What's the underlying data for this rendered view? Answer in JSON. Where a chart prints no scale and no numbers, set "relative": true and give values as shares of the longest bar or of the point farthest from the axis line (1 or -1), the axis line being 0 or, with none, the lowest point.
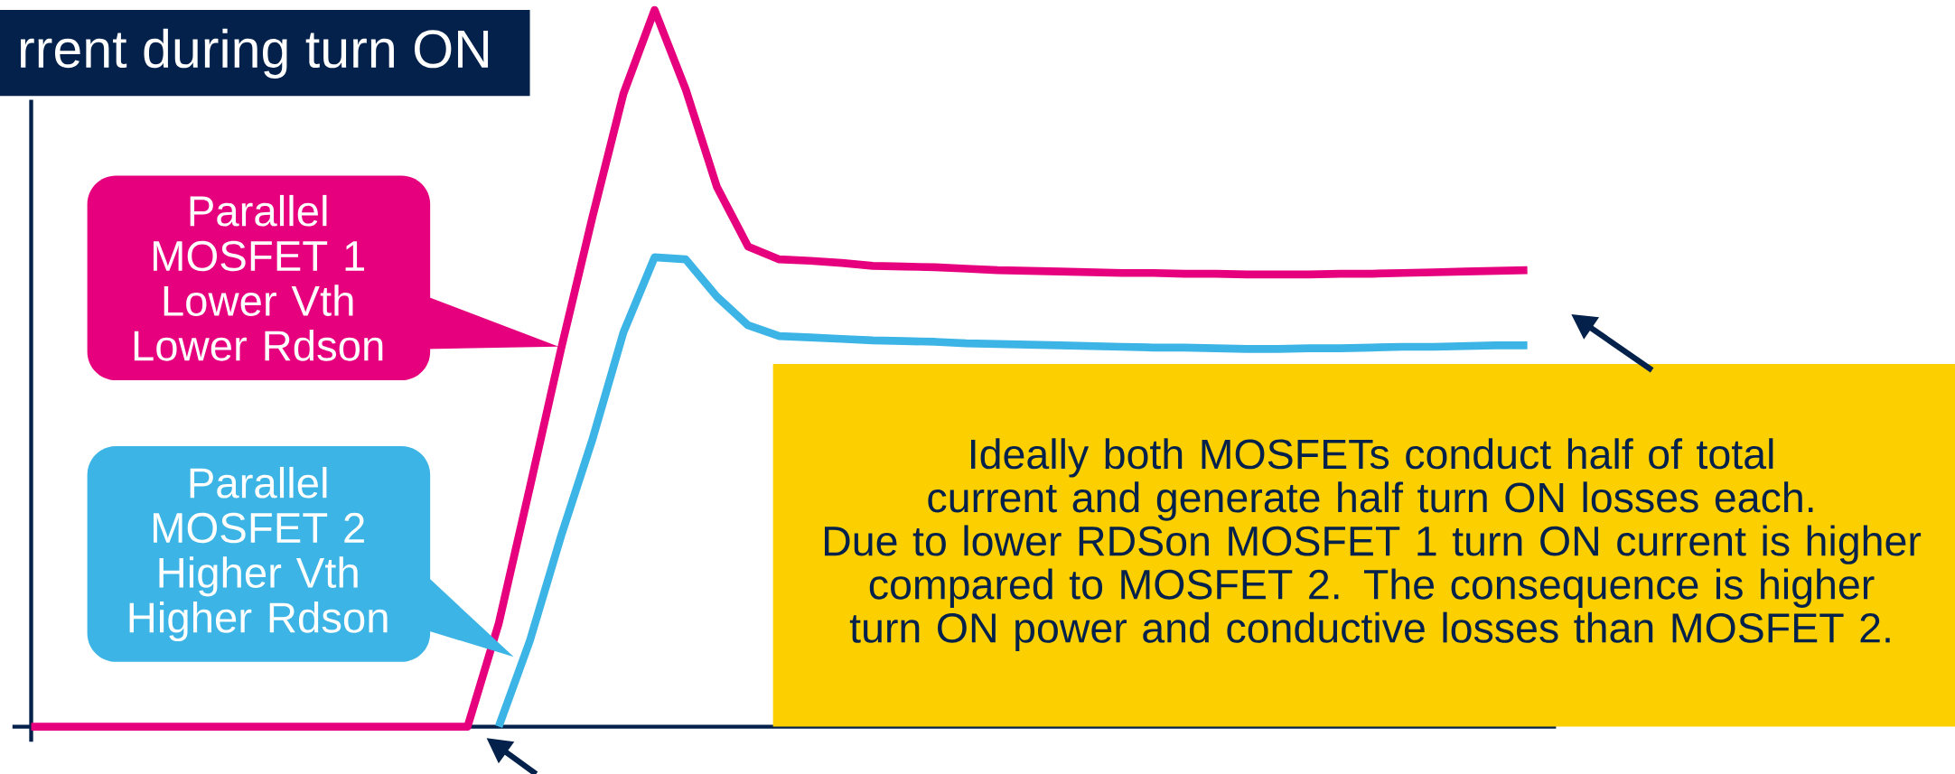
{
  "chart_data": {
    "type": "line",
    "relative": true,
    "title": "rrent during turn ON",
    "categories": [
      null,
      null,
      null,
      null,
      null,
      null,
      null,
      null,
      null,
      null,
      null,
      null,
      null,
      null,
      null,
      null,
      null,
      null,
      null,
      null,
      null,
      null,
      null,
      null,
      null,
      null,
      null,
      null,
      null,
      null,
      null,
      null,
      null,
      null,
      null,
      null,
      null,
      null,
      null,
      null,
      null,
      null,
      null,
      null,
      null,
      null,
      null,
      null,
      null
    ],
    "series": [
      {
        "color": "#e6007e",
        "values": [
          0,
          0,
          0,
          0,
          0,
          0,
          0,
          0,
          0,
          0,
          0,
          0,
          0,
          0,
          0,
          0.144,
          0.334,
          0.527,
          0.71,
          0.883,
          1.0,
          0.889,
          0.753,
          0.67,
          0.652,
          0.65,
          0.647,
          0.643,
          0.642,
          0.641,
          0.639,
          0.637,
          0.636,
          0.635,
          0.634,
          0.633,
          0.633,
          0.632,
          0.632,
          0.631,
          0.631,
          0.631,
          0.632,
          0.632,
          0.633,
          0.634,
          0.635,
          0.636,
          0.637
        ]
      },
      {
        "color": "#3cb4e5",
        "values": [
          null,
          null,
          null,
          null,
          null,
          null,
          null,
          null,
          null,
          null,
          null,
          null,
          null,
          null,
          null,
          0,
          0.12,
          0.266,
          0.4,
          0.55,
          0.655,
          0.652,
          0.6,
          0.56,
          0.545,
          0.543,
          0.541,
          0.539,
          0.538,
          0.537,
          0.535,
          0.534,
          0.533,
          0.532,
          0.531,
          0.53,
          0.529,
          0.529,
          0.528,
          0.527,
          0.527,
          0.528,
          0.528,
          0.529,
          0.53,
          0.53,
          0.531,
          0.532,
          0.532
        ]
      }
    ],
    "annotations": [
      "Parallel MOSFET 1 Lower Vth Lower Rdson",
      "Parallel MOSFET 2 Higher Vth Higher Rdson",
      "Ideally both MOSFETs conduct half of total current and generate half turn ON losses each.",
      "Due to lower RDSon MOSFET 1 turn ON current is higher compared to MOSFET 2. The consequence is higher turn ON power and conductive losses than MOSFET 2."
    ]
  }
}
